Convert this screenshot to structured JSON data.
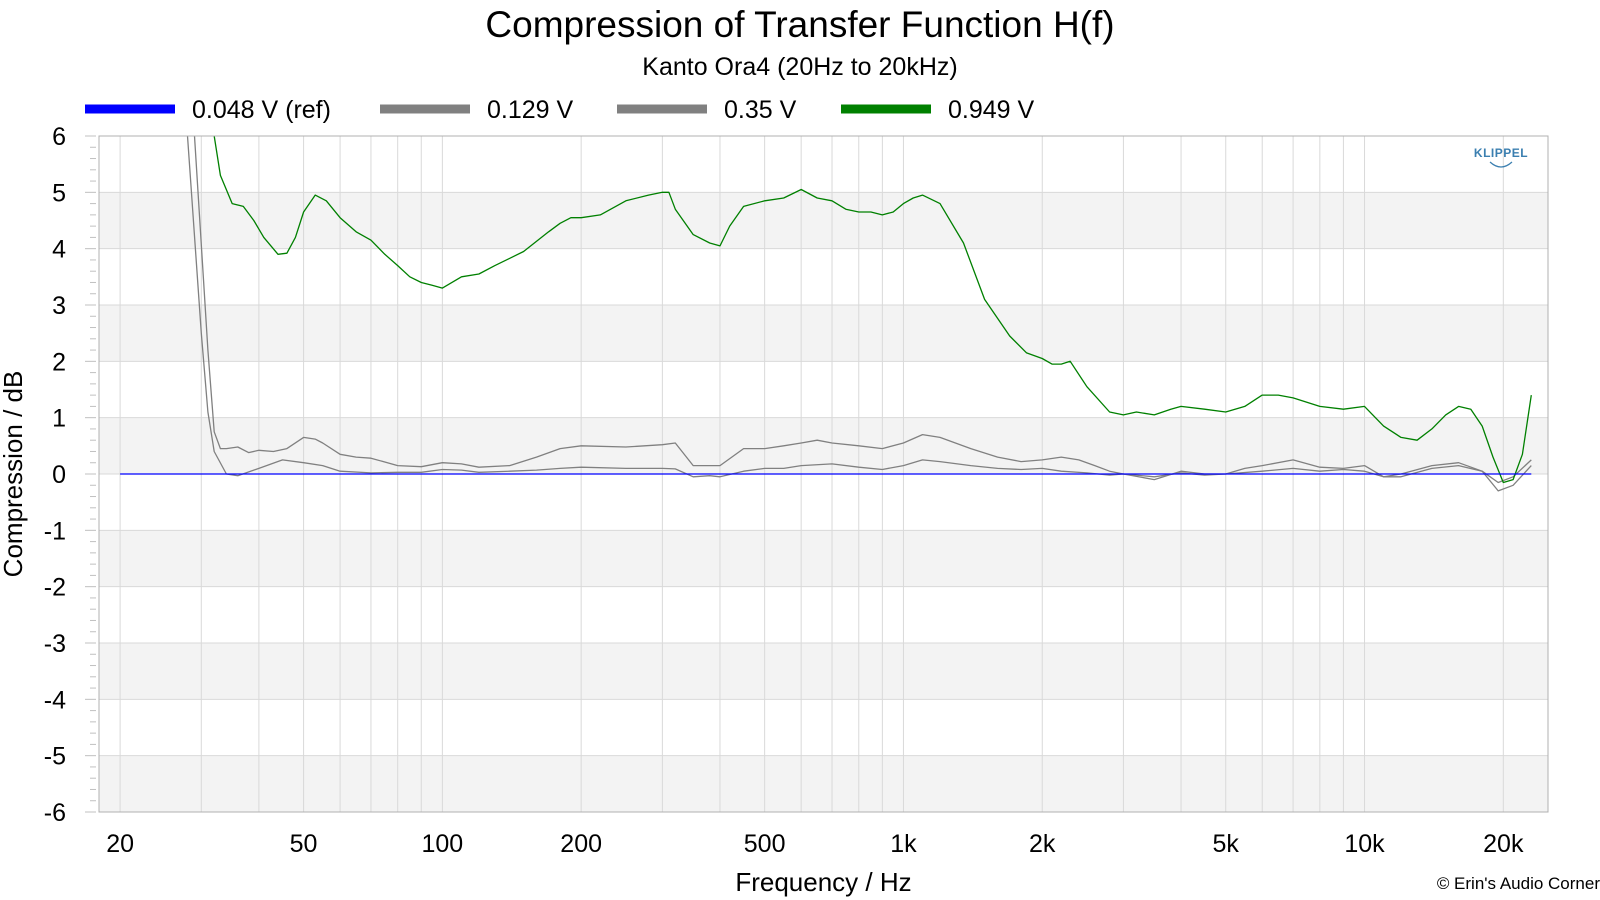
{
  "chart_data": {
    "type": "line",
    "title": "Compression of Transfer Function H(f)",
    "subtitle": "Kanto Ora4 (20Hz to 20kHz)",
    "xlabel": "Frequency / Hz",
    "ylabel": "Compression / dB",
    "xscale": "log",
    "xlim": [
      18,
      25000
    ],
    "ylim": [
      -6,
      6
    ],
    "xticks": [
      {
        "value": 20,
        "label": "20"
      },
      {
        "value": 50,
        "label": "50"
      },
      {
        "value": 100,
        "label": "100"
      },
      {
        "value": 200,
        "label": "200"
      },
      {
        "value": 500,
        "label": "500"
      },
      {
        "value": 1000,
        "label": "1k"
      },
      {
        "value": 2000,
        "label": "2k"
      },
      {
        "value": 5000,
        "label": "5k"
      },
      {
        "value": 10000,
        "label": "10k"
      },
      {
        "value": 20000,
        "label": "20k"
      }
    ],
    "yticks": [
      6,
      5,
      4,
      3,
      2,
      1,
      0,
      -1,
      -2,
      -3,
      -4,
      -5,
      -6
    ],
    "grid": true,
    "legend_position": "top",
    "series": [
      {
        "name": "0.048 V (ref)",
        "color": "#0000ff",
        "x": [
          20,
          23000
        ],
        "y": [
          0,
          0
        ]
      },
      {
        "name": "0.129 V",
        "color": "#808080",
        "x": [
          28,
          30,
          31,
          32,
          34,
          36,
          40,
          45,
          50,
          55,
          60,
          70,
          80,
          90,
          100,
          110,
          120,
          140,
          160,
          180,
          200,
          250,
          300,
          320,
          350,
          380,
          400,
          450,
          500,
          550,
          600,
          700,
          800,
          900,
          1000,
          1100,
          1200,
          1400,
          1600,
          1800,
          2000,
          2200,
          2500,
          2800,
          3000,
          3500,
          4000,
          4500,
          5000,
          6000,
          7000,
          8000,
          9000,
          10000,
          11000,
          12000,
          14000,
          16000,
          18000,
          19500,
          21000,
          23000
        ],
        "y": [
          6,
          2.5,
          1.1,
          0.4,
          0.0,
          -0.03,
          0.1,
          0.25,
          0.2,
          0.15,
          0.05,
          0.02,
          0.03,
          0.03,
          0.08,
          0.07,
          0.03,
          0.05,
          0.07,
          0.1,
          0.12,
          0.1,
          0.1,
          0.09,
          -0.05,
          -0.03,
          -0.05,
          0.05,
          0.1,
          0.1,
          0.15,
          0.18,
          0.12,
          0.08,
          0.15,
          0.25,
          0.22,
          0.15,
          0.1,
          0.08,
          0.1,
          0.05,
          0.02,
          -0.02,
          0.0,
          -0.05,
          0.02,
          -0.02,
          0.0,
          0.05,
          0.1,
          0.05,
          0.08,
          0.05,
          -0.05,
          -0.05,
          0.1,
          0.15,
          0.05,
          -0.3,
          -0.2,
          0.15
        ]
      },
      {
        "name": "0.35 V",
        "color": "#808080",
        "x": [
          29,
          31,
          32,
          33,
          34,
          36,
          38,
          40,
          43,
          46,
          50,
          53,
          55,
          60,
          65,
          70,
          80,
          90,
          100,
          110,
          120,
          140,
          160,
          180,
          200,
          250,
          300,
          320,
          350,
          380,
          400,
          450,
          500,
          550,
          600,
          650,
          700,
          800,
          900,
          1000,
          1100,
          1200,
          1400,
          1600,
          1800,
          2000,
          2200,
          2400,
          2600,
          2800,
          3000,
          3500,
          4000,
          4500,
          5000,
          5500,
          6000,
          7000,
          8000,
          9000,
          10000,
          11000,
          12000,
          14000,
          16000,
          18000,
          19500,
          21000,
          23000
        ],
        "y": [
          6,
          2.2,
          0.75,
          0.45,
          0.45,
          0.48,
          0.38,
          0.42,
          0.4,
          0.45,
          0.65,
          0.62,
          0.55,
          0.35,
          0.3,
          0.28,
          0.15,
          0.13,
          0.2,
          0.18,
          0.12,
          0.15,
          0.3,
          0.45,
          0.5,
          0.48,
          0.52,
          0.55,
          0.15,
          0.15,
          0.15,
          0.45,
          0.45,
          0.5,
          0.55,
          0.6,
          0.55,
          0.5,
          0.45,
          0.55,
          0.7,
          0.65,
          0.45,
          0.3,
          0.22,
          0.25,
          0.3,
          0.25,
          0.15,
          0.05,
          0.0,
          -0.1,
          0.05,
          0.0,
          0.0,
          0.1,
          0.15,
          0.25,
          0.12,
          0.1,
          0.15,
          -0.05,
          0.0,
          0.15,
          0.2,
          0.05,
          -0.15,
          -0.05,
          0.25
        ]
      },
      {
        "name": "0.949 V",
        "color": "#008000",
        "x": [
          32,
          33,
          35,
          37,
          39,
          41,
          44,
          46,
          48,
          50,
          53,
          56,
          60,
          65,
          70,
          75,
          80,
          85,
          90,
          95,
          100,
          110,
          120,
          130,
          150,
          170,
          180,
          190,
          200,
          220,
          250,
          280,
          300,
          310,
          320,
          350,
          380,
          400,
          420,
          450,
          500,
          550,
          600,
          650,
          700,
          750,
          800,
          850,
          900,
          950,
          1000,
          1050,
          1100,
          1200,
          1350,
          1500,
          1700,
          1850,
          2000,
          2100,
          2200,
          2300,
          2500,
          2800,
          3000,
          3200,
          3500,
          3800,
          4000,
          4500,
          5000,
          5500,
          6000,
          6500,
          7000,
          8000,
          9000,
          10000,
          11000,
          12000,
          13000,
          14000,
          15000,
          16000,
          17000,
          18000,
          19000,
          20000,
          21000,
          22000,
          23000
        ],
        "y": [
          6,
          5.3,
          4.8,
          4.75,
          4.5,
          4.2,
          3.9,
          3.92,
          4.2,
          4.65,
          4.95,
          4.85,
          4.55,
          4.3,
          4.15,
          3.9,
          3.7,
          3.5,
          3.4,
          3.35,
          3.3,
          3.5,
          3.55,
          3.7,
          3.95,
          4.3,
          4.45,
          4.55,
          4.55,
          4.6,
          4.85,
          4.95,
          5.0,
          5.0,
          4.7,
          4.25,
          4.1,
          4.05,
          4.4,
          4.75,
          4.85,
          4.9,
          5.05,
          4.9,
          4.85,
          4.7,
          4.65,
          4.65,
          4.6,
          4.65,
          4.8,
          4.9,
          4.95,
          4.8,
          4.1,
          3.1,
          2.45,
          2.15,
          2.05,
          1.95,
          1.95,
          2.0,
          1.55,
          1.1,
          1.05,
          1.1,
          1.05,
          1.15,
          1.2,
          1.15,
          1.1,
          1.2,
          1.4,
          1.4,
          1.35,
          1.2,
          1.15,
          1.2,
          0.85,
          0.65,
          0.6,
          0.8,
          1.05,
          1.2,
          1.15,
          0.85,
          0.3,
          -0.15,
          -0.1,
          0.35,
          1.4
        ]
      }
    ]
  },
  "credit": "© Erin's Audio Corner",
  "logo_text": "KLIPPEL"
}
